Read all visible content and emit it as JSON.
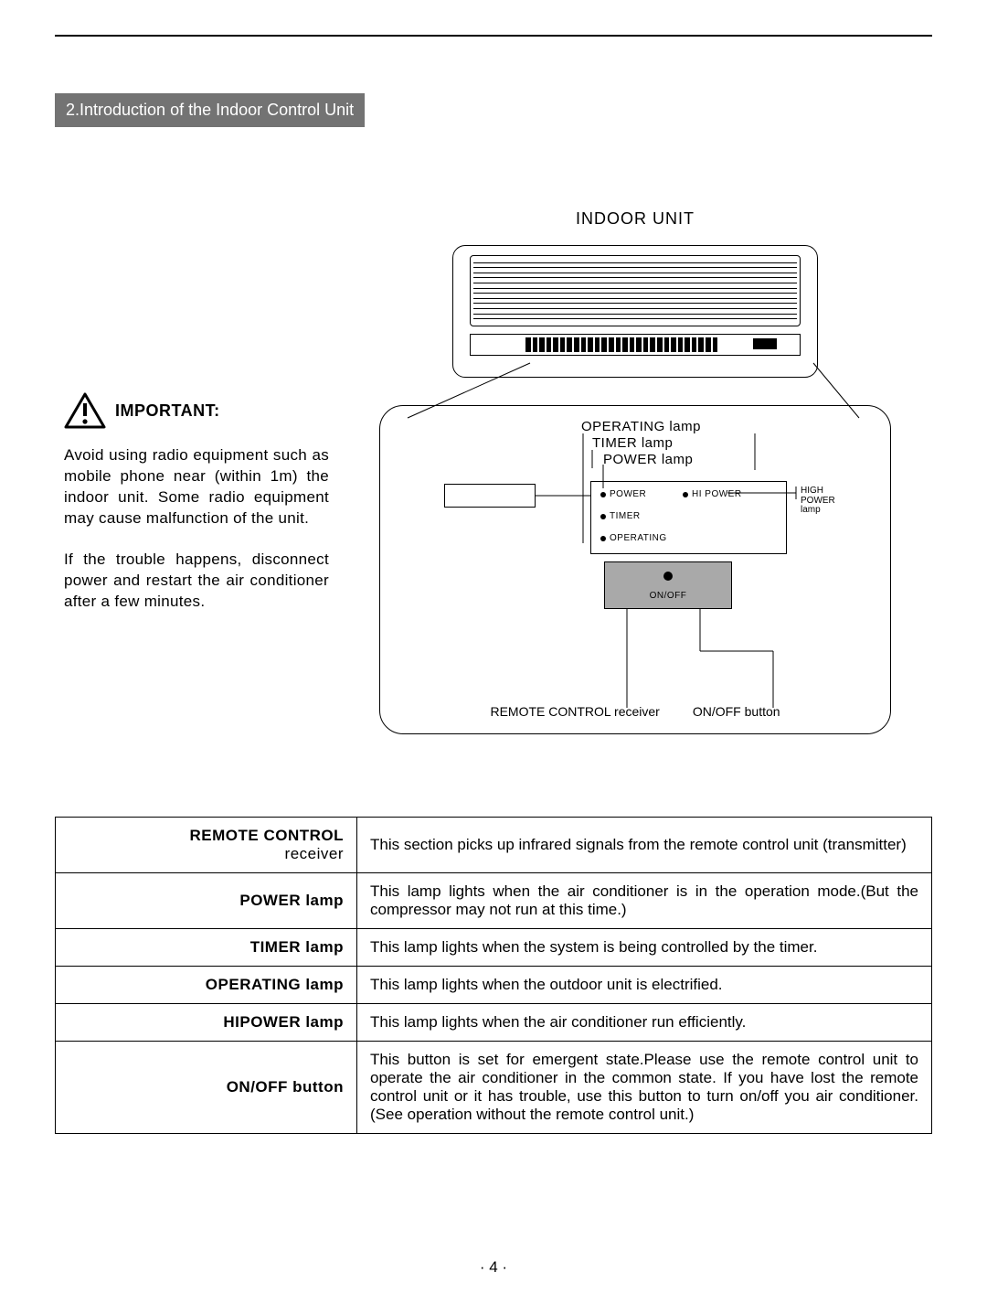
{
  "section_title": "2.Introduction of the Indoor Control Unit",
  "important_label": "IMPORTANT:",
  "left_paragraph_1": "Avoid using radio equipment such as mobile phone near (within 1m) the indoor unit. Some radio equipment may cause malfunction of the unit.",
  "left_paragraph_2": "If the trouble happens, disconnect power and restart the air conditioner after a few minutes.",
  "indoor_unit_title": "INDOOR UNIT",
  "label_stack": {
    "operating": "OPERATING lamp",
    "timer": "TIMER lamp",
    "power": "POWER lamp"
  },
  "lamp_box": {
    "power": "POWER",
    "hipower": "HI POWER",
    "timer": "TIMER",
    "operating": "OPERATING"
  },
  "hipower_side": {
    "l1": "HIGH",
    "l2": "POWER",
    "l3": "lamp"
  },
  "onoff_small": "ON/OFF",
  "bottom_label_left": "REMOTE CONTROL receiver",
  "bottom_label_right": "ON/OFF button",
  "table": {
    "rows": [
      {
        "label_main": "REMOTE CONTROL",
        "label_sub": "receiver",
        "desc": "This section picks up infrared signals from the remote control unit (transmitter)"
      },
      {
        "label_main": "POWER lamp",
        "label_sub": "",
        "desc": "This lamp lights when the air conditioner is in the operation mode.(But the compressor may not run at this time.)"
      },
      {
        "label_main": "TIMER lamp",
        "label_sub": "",
        "desc": "This lamp lights when the system is being controlled by the timer."
      },
      {
        "label_main": "OPERATING lamp",
        "label_sub": "",
        "desc": "This lamp lights when the outdoor unit is electrified."
      },
      {
        "label_main": "HIPOWER lamp",
        "label_sub": "",
        "desc": "This lamp lights when the air conditioner run efficiently."
      },
      {
        "label_main": "ON/OFF button",
        "label_sub": "",
        "desc": "This button is set for emergent state.Please use the remote control unit to operate the air conditioner in the common state. If you have lost the remote control unit or it has trouble, use this button to turn on/off you air conditioner.(See operation without the remote control unit.)"
      }
    ]
  },
  "page_number": "· 4 ·",
  "colors": {
    "title_bg": "#737373",
    "title_fg": "#ffffff",
    "receiver_bg": "#a9a9a9",
    "line": "#000000",
    "page_bg": "#ffffff"
  },
  "vent_line_count": 12,
  "teeth_count": 28
}
